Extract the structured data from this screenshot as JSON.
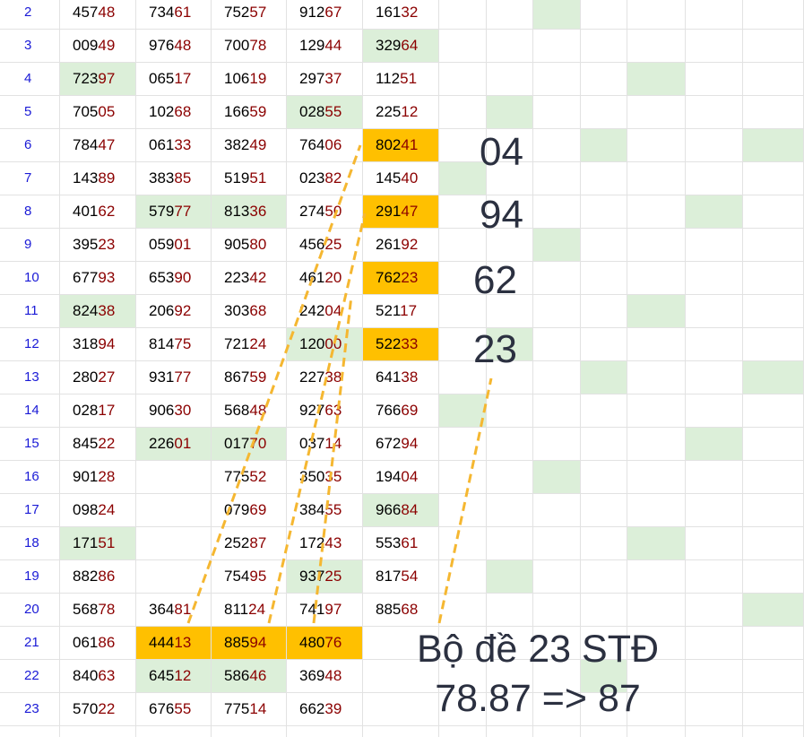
{
  "rows": [
    {
      "label": "2",
      "cells": [
        [
          "457",
          "48"
        ],
        [
          "734",
          "61"
        ],
        [
          "752",
          "57"
        ],
        [
          "912",
          "67"
        ],
        [
          "161",
          "32"
        ]
      ]
    },
    {
      "label": "3",
      "cells": [
        [
          "009",
          "49"
        ],
        [
          "976",
          "48"
        ],
        [
          "700",
          "78"
        ],
        [
          "129",
          "44"
        ],
        [
          "329",
          "64"
        ]
      ]
    },
    {
      "label": "4",
      "cells": [
        [
          "723",
          "97"
        ],
        [
          "065",
          "17"
        ],
        [
          "106",
          "19"
        ],
        [
          "297",
          "37"
        ],
        [
          "112",
          "51"
        ]
      ]
    },
    {
      "label": "5",
      "cells": [
        [
          "705",
          "05"
        ],
        [
          "102",
          "68"
        ],
        [
          "166",
          "59"
        ],
        [
          "028",
          "55"
        ],
        [
          "225",
          "12"
        ]
      ]
    },
    {
      "label": "6",
      "cells": [
        [
          "784",
          "47"
        ],
        [
          "061",
          "33"
        ],
        [
          "382",
          "49"
        ],
        [
          "764",
          "06"
        ],
        [
          "802",
          "41"
        ]
      ]
    },
    {
      "label": "7",
      "cells": [
        [
          "143",
          "89"
        ],
        [
          "383",
          "85"
        ],
        [
          "519",
          "51"
        ],
        [
          "023",
          "82"
        ],
        [
          "145",
          "40"
        ]
      ]
    },
    {
      "label": "8",
      "cells": [
        [
          "401",
          "62"
        ],
        [
          "579",
          "77"
        ],
        [
          "813",
          "36"
        ],
        [
          "274",
          "50"
        ],
        [
          "291",
          "47"
        ]
      ]
    },
    {
      "label": "9",
      "cells": [
        [
          "395",
          "23"
        ],
        [
          "059",
          "01"
        ],
        [
          "905",
          "80"
        ],
        [
          "456",
          "25"
        ],
        [
          "261",
          "92"
        ]
      ]
    },
    {
      "label": "10",
      "cells": [
        [
          "677",
          "93"
        ],
        [
          "653",
          "90"
        ],
        [
          "223",
          "42"
        ],
        [
          "461",
          "20"
        ],
        [
          "762",
          "23"
        ]
      ]
    },
    {
      "label": "11",
      "cells": [
        [
          "824",
          "38"
        ],
        [
          "206",
          "92"
        ],
        [
          "303",
          "68"
        ],
        [
          "242",
          "04"
        ],
        [
          "521",
          "17"
        ]
      ]
    },
    {
      "label": "12",
      "cells": [
        [
          "318",
          "94"
        ],
        [
          "814",
          "75"
        ],
        [
          "721",
          "24"
        ],
        [
          "120",
          "00"
        ],
        [
          "522",
          "33"
        ]
      ]
    },
    {
      "label": "13",
      "cells": [
        [
          "280",
          "27"
        ],
        [
          "931",
          "77"
        ],
        [
          "867",
          "59"
        ],
        [
          "227",
          "38"
        ],
        [
          "641",
          "38"
        ]
      ]
    },
    {
      "label": "14",
      "cells": [
        [
          "028",
          "17"
        ],
        [
          "906",
          "30"
        ],
        [
          "568",
          "48"
        ],
        [
          "927",
          "63"
        ],
        [
          "766",
          "69"
        ]
      ]
    },
    {
      "label": "15",
      "cells": [
        [
          "845",
          "22"
        ],
        [
          "226",
          "01"
        ],
        [
          "017",
          "70"
        ],
        [
          "037",
          "14"
        ],
        [
          "672",
          "94"
        ]
      ]
    },
    {
      "label": "16",
      "cells": [
        [
          "901",
          "28"
        ],
        null,
        [
          "775",
          "52"
        ],
        [
          "350",
          "35"
        ],
        [
          "194",
          "04"
        ]
      ]
    },
    {
      "label": "17",
      "cells": [
        [
          "098",
          "24"
        ],
        null,
        [
          "079",
          "69"
        ],
        [
          "384",
          "55"
        ],
        [
          "966",
          "84"
        ]
      ]
    },
    {
      "label": "18",
      "cells": [
        [
          "171",
          "51"
        ],
        null,
        [
          "252",
          "87"
        ],
        [
          "172",
          "43"
        ],
        [
          "553",
          "61"
        ]
      ]
    },
    {
      "label": "19",
      "cells": [
        [
          "882",
          "86"
        ],
        null,
        [
          "754",
          "95"
        ],
        [
          "937",
          "25"
        ],
        [
          "817",
          "54"
        ]
      ]
    },
    {
      "label": "20",
      "cells": [
        [
          "568",
          "78"
        ],
        [
          "364",
          "81"
        ],
        [
          "811",
          "24"
        ],
        [
          "741",
          "97"
        ],
        [
          "885",
          "68"
        ]
      ]
    },
    {
      "label": "21",
      "cells": [
        [
          "061",
          "86"
        ],
        [
          "444",
          "13"
        ],
        [
          "885",
          "94"
        ],
        [
          "480",
          "76"
        ],
        null
      ]
    },
    {
      "label": "22",
      "cells": [
        [
          "840",
          "63"
        ],
        [
          "645",
          "12"
        ],
        [
          "586",
          "46"
        ],
        [
          "369",
          "48"
        ],
        null
      ]
    },
    {
      "label": "23",
      "cells": [
        [
          "570",
          "22"
        ],
        [
          "676",
          "55"
        ],
        [
          "775",
          "14"
        ],
        [
          "662",
          "39"
        ],
        null
      ]
    }
  ],
  "annotations": {
    "numbers": [
      "04",
      "94",
      "62",
      "23"
    ],
    "title": "Bộ đề 23 STĐ",
    "subtitle": "78.87 => 87"
  }
}
